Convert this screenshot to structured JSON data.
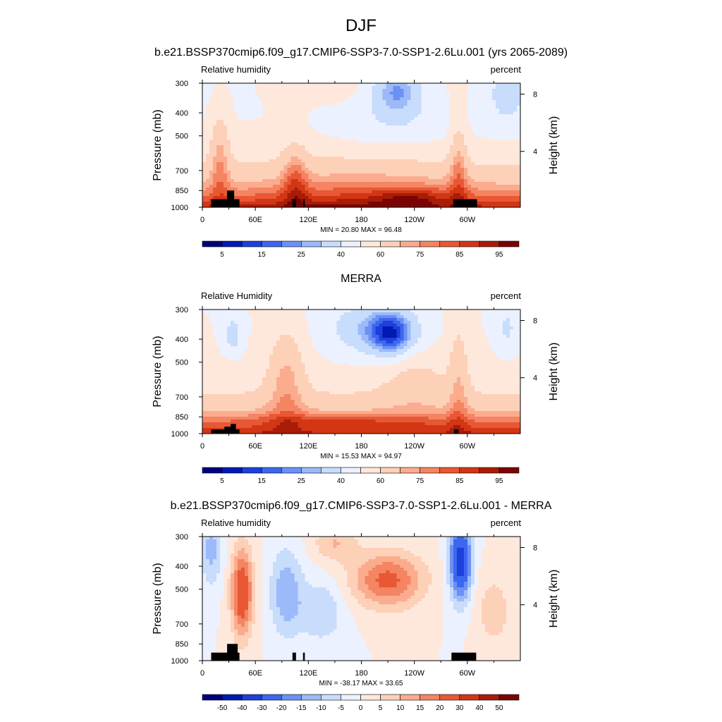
{
  "figure_title": "DJF",
  "chart_data": [
    {
      "type": "heatmap",
      "title": "b.e21.BSSP370cmip6.f09_g17.CMIP6-SSP3-7.0-SSP1-2.6Lu.001 (yrs 2065-2089)",
      "variable_label": "Relative humidity",
      "units_label": "percent",
      "ylabel": "Pressure (mb)",
      "y2label": "Height (km)",
      "x_ticks": [
        "0",
        "60E",
        "120E",
        "180",
        "120W",
        "60W"
      ],
      "x_tick_lon": [
        0,
        60,
        120,
        180,
        240,
        300
      ],
      "xlim": [
        0,
        360
      ],
      "y_ticks": [
        "300",
        "400",
        "500",
        "700",
        "850",
        "1000"
      ],
      "y_tick_p": [
        300,
        400,
        500,
        700,
        850,
        1000
      ],
      "ylim_p": [
        1000,
        300
      ],
      "y2_ticks": [
        "4",
        "8"
      ],
      "y2_tick_km": [
        4,
        8
      ],
      "stats_text": "MIN =  20.80  MAX =  96.48",
      "min": 20.8,
      "max": 96.48,
      "colorbar_labels": [
        "5",
        "15",
        "25",
        "40",
        "60",
        "75",
        "85",
        "95"
      ],
      "colorbar_levels": [
        5,
        10,
        15,
        20,
        25,
        30,
        40,
        50,
        60,
        70,
        75,
        80,
        85,
        90,
        95
      ],
      "terrain_blocks": [
        [
          10,
          42,
          925
        ],
        [
          28,
          36,
          850
        ],
        [
          102,
          106,
          925
        ],
        [
          114,
          116,
          925
        ],
        [
          284,
          311,
          925
        ]
      ]
    },
    {
      "type": "heatmap",
      "title": "MERRA",
      "variable_label": "Relative Humidity",
      "units_label": "percent",
      "ylabel": "Pressure (mb)",
      "y2label": "Height (km)",
      "x_ticks": [
        "0",
        "60E",
        "120E",
        "180",
        "120W",
        "60W"
      ],
      "x_tick_lon": [
        0,
        60,
        120,
        180,
        240,
        300
      ],
      "xlim": [
        0,
        360
      ],
      "y_ticks": [
        "300",
        "400",
        "500",
        "700",
        "850",
        "1000"
      ],
      "y_tick_p": [
        300,
        400,
        500,
        700,
        850,
        1000
      ],
      "ylim_p": [
        1000,
        300
      ],
      "y2_ticks": [
        "4",
        "8"
      ],
      "y2_tick_km": [
        4,
        8
      ],
      "stats_text": "MIN =  15.53  MAX =  94.97",
      "min": 15.53,
      "max": 94.97,
      "colorbar_labels": [
        "5",
        "15",
        "25",
        "40",
        "60",
        "75",
        "85",
        "95"
      ],
      "colorbar_levels": [
        5,
        10,
        15,
        20,
        25,
        30,
        40,
        50,
        60,
        70,
        75,
        80,
        85,
        90,
        95
      ],
      "terrain_blocks": [
        [
          10,
          42,
          960
        ],
        [
          25,
          32,
          935
        ],
        [
          32,
          38,
          910
        ],
        [
          285,
          290,
          960
        ]
      ]
    },
    {
      "type": "heatmap",
      "title": "b.e21.BSSP370cmip6.f09_g17.CMIP6-SSP3-7.0-SSP1-2.6Lu.001 - MERRA",
      "variable_label": "Relative humidity",
      "units_label": "percent",
      "ylabel": "Pressure (mb)",
      "y2label": "Height (km)",
      "x_ticks": [
        "0",
        "60E",
        "120E",
        "180",
        "120W",
        "60W"
      ],
      "x_tick_lon": [
        0,
        60,
        120,
        180,
        240,
        300
      ],
      "xlim": [
        0,
        360
      ],
      "y_ticks": [
        "300",
        "400",
        "500",
        "700",
        "850",
        "1000"
      ],
      "y_tick_p": [
        300,
        400,
        500,
        700,
        850,
        1000
      ],
      "ylim_p": [
        1000,
        300
      ],
      "y2_ticks": [
        "4",
        "8"
      ],
      "y2_tick_km": [
        4,
        8
      ],
      "stats_text": "MIN = -38.17  MAX =  33.65",
      "min": -38.17,
      "max": 33.65,
      "colorbar_labels": [
        "-50",
        "-40",
        "-30",
        "-20",
        "-15",
        "-10",
        "-5",
        "0",
        "5",
        "10",
        "15",
        "20",
        "30",
        "40",
        "50"
      ],
      "colorbar_levels": [
        -50,
        -40,
        -30,
        -20,
        -15,
        -10,
        -5,
        0,
        5,
        10,
        15,
        20,
        30,
        40,
        50
      ],
      "terrain_blocks": [
        [
          10,
          42,
          925
        ],
        [
          28,
          40,
          850
        ],
        [
          102,
          106,
          925
        ],
        [
          114,
          116,
          925
        ],
        [
          282,
          310,
          925
        ]
      ]
    }
  ],
  "colors": {
    "palette": [
      "#00007e",
      "#0019b2",
      "#1d3fdb",
      "#3d67ee",
      "#6b91f5",
      "#9cbaf9",
      "#c8dcfc",
      "#ebf1fe",
      "#fee8dc",
      "#fdd0b8",
      "#fbac8e",
      "#f48462",
      "#e85835",
      "#d23614",
      "#a81c08",
      "#7a0403"
    ],
    "terrain": "#000000",
    "frame": "#000000"
  }
}
